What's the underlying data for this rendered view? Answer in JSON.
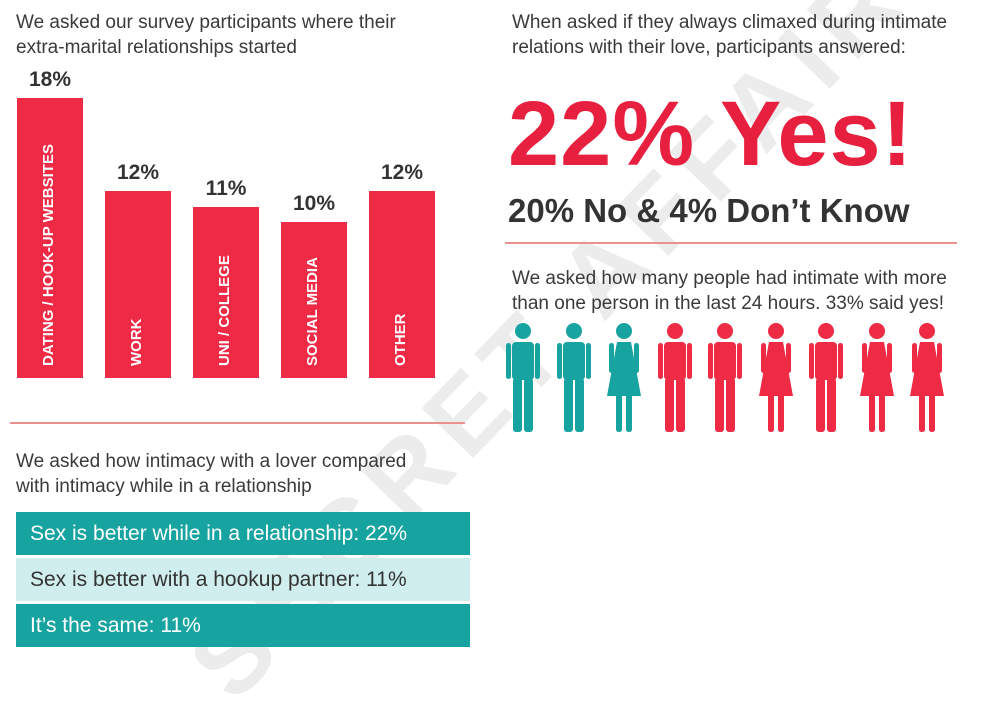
{
  "watermark": "SECRET AFFAIR",
  "colors": {
    "red": "#ee2a45",
    "teal": "#17a3a0",
    "light_teal": "#cfeeed",
    "divider": "#e8918f"
  },
  "bar_section": {
    "intro_line1": "We asked our survey participants where their",
    "intro_line2": "extra-marital relationships started"
  },
  "chart_data": {
    "type": "bar",
    "categories": [
      "DATING / HOOK-UP WEBSITES",
      "WORK",
      "UNI / COLLEGE",
      "SOCIAL MEDIA",
      "OTHER"
    ],
    "values": [
      18,
      12,
      11,
      10,
      12
    ],
    "value_labels": [
      "18%",
      "12%",
      "11%",
      "10%",
      "12%"
    ],
    "unit": "%",
    "ylim": [
      0,
      18
    ],
    "grid": false,
    "color": "#ee2a45"
  },
  "climax_section": {
    "intro_line1": "When asked if they always climaxed during intimate",
    "intro_line2": "relations with their love, participants answered:",
    "headline": "22% Yes!",
    "subline": "20% No & 4% Don’t Know"
  },
  "people_section": {
    "intro_line1": "We asked how many people had intimate with more",
    "intro_line2": "than one person in the last 24 hours. 33% said yes!",
    "figures": [
      {
        "type": "male",
        "color": "teal-icon"
      },
      {
        "type": "male",
        "color": "teal-icon"
      },
      {
        "type": "female",
        "color": "teal-icon"
      },
      {
        "type": "male",
        "color": "red-icon"
      },
      {
        "type": "male",
        "color": "red-icon"
      },
      {
        "type": "female",
        "color": "red-icon"
      },
      {
        "type": "male",
        "color": "red-icon"
      },
      {
        "type": "female",
        "color": "red-icon"
      },
      {
        "type": "female",
        "color": "red-icon"
      }
    ]
  },
  "comparison_section": {
    "intro_line1": "We asked how intimacy with a lover compared",
    "intro_line2": "with intimacy while in a relationship",
    "rows": [
      "Sex is better while in a relationship: 22%",
      "Sex is better with a hookup partner: 11%",
      "It’s the same: 11%"
    ]
  }
}
